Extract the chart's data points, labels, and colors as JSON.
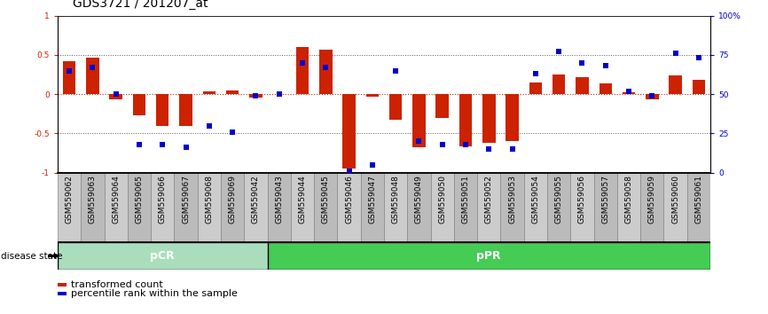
{
  "title": "GDS3721 / 201207_at",
  "samples": [
    "GSM559062",
    "GSM559063",
    "GSM559064",
    "GSM559065",
    "GSM559066",
    "GSM559067",
    "GSM559068",
    "GSM559069",
    "GSM559042",
    "GSM559043",
    "GSM559044",
    "GSM559045",
    "GSM559046",
    "GSM559047",
    "GSM559048",
    "GSM559049",
    "GSM559050",
    "GSM559051",
    "GSM559052",
    "GSM559053",
    "GSM559054",
    "GSM559055",
    "GSM559056",
    "GSM559057",
    "GSM559058",
    "GSM559059",
    "GSM559060",
    "GSM559061"
  ],
  "transformed_count": [
    0.42,
    0.47,
    -0.07,
    -0.27,
    -0.41,
    -0.41,
    0.04,
    0.05,
    -0.04,
    0.0,
    0.6,
    0.57,
    -0.95,
    -0.03,
    -0.33,
    -0.68,
    -0.3,
    -0.67,
    -0.62,
    -0.6,
    0.15,
    0.25,
    0.22,
    0.14,
    0.02,
    -0.06,
    0.24,
    0.18
  ],
  "percentile_rank": [
    65,
    67,
    50,
    18,
    18,
    16,
    30,
    26,
    49,
    50,
    70,
    67,
    1,
    5,
    65,
    20,
    18,
    18,
    15,
    15,
    63,
    77,
    70,
    68,
    52,
    49,
    76,
    73
  ],
  "pcr_count": 9,
  "ppr_count": 19,
  "bar_color": "#cc2200",
  "square_color": "#0000cc",
  "pcr_fill": "#aaddbb",
  "ppr_fill": "#44cc55",
  "bg_color": "#ffffff",
  "tick_bg": "#cccccc",
  "ylim_left": [
    -1.0,
    1.0
  ],
  "ylim_right": [
    0,
    100
  ],
  "yticks_left": [
    -1.0,
    -0.5,
    0.0,
    0.5,
    1.0
  ],
  "yticklabels_left": [
    "-1",
    "-0.5",
    "0",
    "0.5",
    "1"
  ],
  "yticks_right": [
    0,
    25,
    50,
    75,
    100
  ],
  "yticklabels_right": [
    "0",
    "25",
    "50",
    "75",
    "100%"
  ],
  "bar_width": 0.55,
  "square_size": 13,
  "title_fontsize": 10,
  "tick_fontsize": 6.5,
  "label_fontsize": 8
}
